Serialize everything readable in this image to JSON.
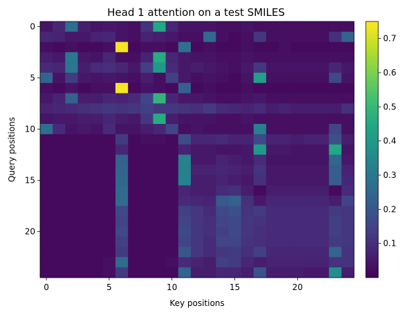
{
  "chart_data": {
    "type": "heatmap",
    "title": "Head 1 attention on a test SMILES",
    "xlabel": "Key positions",
    "ylabel": "Query positions",
    "x_ticks": [
      0,
      5,
      10,
      15,
      20
    ],
    "y_ticks": [
      0,
      5,
      10,
      15,
      20
    ],
    "colorbar_ticks": [
      0.1,
      0.2,
      0.3,
      0.4,
      0.5,
      0.6,
      0.7
    ],
    "value_range": [
      0.0,
      0.75
    ],
    "rows": 25,
    "cols": 25,
    "colormap": "viridis",
    "matrix": [
      [
        0.04,
        0.08,
        0.27,
        0.06,
        0.04,
        0.05,
        0.04,
        0.03,
        0.11,
        0.45,
        0.08,
        0.04,
        0.04,
        0.04,
        0.03,
        0.03,
        0.04,
        0.03,
        0.03,
        0.03,
        0.03,
        0.03,
        0.03,
        0.03,
        0.03
      ],
      [
        0.08,
        0.07,
        0.05,
        0.05,
        0.07,
        0.08,
        0.04,
        0.03,
        0.07,
        0.06,
        0.05,
        0.03,
        0.03,
        0.26,
        0.03,
        0.02,
        0.03,
        0.12,
        0.03,
        0.03,
        0.03,
        0.03,
        0.03,
        0.1,
        0.24
      ],
      [
        0.03,
        0.02,
        0.03,
        0.02,
        0.02,
        0.03,
        0.74,
        0.02,
        0.03,
        0.03,
        0.02,
        0.28,
        0.02,
        0.03,
        0.02,
        0.02,
        0.03,
        0.02,
        0.02,
        0.03,
        0.02,
        0.02,
        0.02,
        0.02,
        0.02
      ],
      [
        0.06,
        0.05,
        0.3,
        0.05,
        0.04,
        0.08,
        0.03,
        0.03,
        0.07,
        0.46,
        0.08,
        0.05,
        0.04,
        0.04,
        0.03,
        0.03,
        0.04,
        0.03,
        0.03,
        0.03,
        0.03,
        0.03,
        0.03,
        0.03,
        0.03
      ],
      [
        0.09,
        0.08,
        0.29,
        0.06,
        0.09,
        0.1,
        0.08,
        0.05,
        0.14,
        0.4,
        0.09,
        0.05,
        0.06,
        0.05,
        0.04,
        0.03,
        0.05,
        0.12,
        0.04,
        0.04,
        0.04,
        0.04,
        0.04,
        0.08,
        0.05
      ],
      [
        0.24,
        0.04,
        0.13,
        0.05,
        0.04,
        0.05,
        0.04,
        0.03,
        0.06,
        0.03,
        0.14,
        0.05,
        0.03,
        0.04,
        0.03,
        0.02,
        0.04,
        0.42,
        0.03,
        0.03,
        0.03,
        0.03,
        0.03,
        0.16,
        0.04
      ],
      [
        0.03,
        0.02,
        0.04,
        0.02,
        0.03,
        0.03,
        0.74,
        0.02,
        0.04,
        0.03,
        0.02,
        0.23,
        0.02,
        0.03,
        0.02,
        0.02,
        0.03,
        0.02,
        0.02,
        0.02,
        0.02,
        0.02,
        0.02,
        0.02,
        0.02
      ],
      [
        0.05,
        0.07,
        0.23,
        0.06,
        0.06,
        0.08,
        0.07,
        0.09,
        0.15,
        0.49,
        0.08,
        0.05,
        0.05,
        0.04,
        0.03,
        0.03,
        0.04,
        0.05,
        0.03,
        0.03,
        0.03,
        0.03,
        0.03,
        0.03,
        0.03
      ],
      [
        0.07,
        0.08,
        0.09,
        0.1,
        0.11,
        0.12,
        0.11,
        0.12,
        0.14,
        0.12,
        0.12,
        0.11,
        0.1,
        0.13,
        0.09,
        0.08,
        0.07,
        0.09,
        0.06,
        0.07,
        0.06,
        0.06,
        0.06,
        0.06,
        0.1
      ],
      [
        0.04,
        0.05,
        0.05,
        0.06,
        0.06,
        0.08,
        0.06,
        0.05,
        0.12,
        0.46,
        0.06,
        0.04,
        0.04,
        0.04,
        0.03,
        0.03,
        0.04,
        0.03,
        0.03,
        0.03,
        0.03,
        0.03,
        0.03,
        0.03,
        0.03
      ],
      [
        0.27,
        0.09,
        0.04,
        0.05,
        0.04,
        0.09,
        0.04,
        0.04,
        0.06,
        0.08,
        0.15,
        0.03,
        0.04,
        0.03,
        0.03,
        0.03,
        0.03,
        0.32,
        0.03,
        0.03,
        0.03,
        0.03,
        0.03,
        0.15,
        0.03
      ],
      [
        0.02,
        0.02,
        0.02,
        0.02,
        0.02,
        0.02,
        0.13,
        0.02,
        0.03,
        0.03,
        0.02,
        0.17,
        0.08,
        0.08,
        0.09,
        0.07,
        0.07,
        0.16,
        0.07,
        0.07,
        0.06,
        0.07,
        0.07,
        0.18,
        0.06
      ],
      [
        0.02,
        0.02,
        0.02,
        0.02,
        0.02,
        0.02,
        0.08,
        0.02,
        0.02,
        0.02,
        0.02,
        0.07,
        0.05,
        0.05,
        0.04,
        0.04,
        0.05,
        0.4,
        0.05,
        0.05,
        0.04,
        0.04,
        0.04,
        0.45,
        0.04
      ],
      [
        0.02,
        0.02,
        0.02,
        0.02,
        0.02,
        0.02,
        0.23,
        0.02,
        0.02,
        0.02,
        0.02,
        0.33,
        0.05,
        0.05,
        0.07,
        0.06,
        0.05,
        0.09,
        0.04,
        0.04,
        0.04,
        0.04,
        0.04,
        0.25,
        0.05
      ],
      [
        0.02,
        0.02,
        0.02,
        0.02,
        0.02,
        0.02,
        0.24,
        0.02,
        0.02,
        0.02,
        0.02,
        0.32,
        0.07,
        0.07,
        0.08,
        0.07,
        0.06,
        0.11,
        0.05,
        0.05,
        0.05,
        0.05,
        0.05,
        0.22,
        0.07
      ],
      [
        0.02,
        0.02,
        0.02,
        0.02,
        0.02,
        0.02,
        0.25,
        0.02,
        0.02,
        0.02,
        0.02,
        0.33,
        0.06,
        0.06,
        0.07,
        0.06,
        0.05,
        0.1,
        0.05,
        0.05,
        0.05,
        0.05,
        0.05,
        0.22,
        0.08
      ],
      [
        0.02,
        0.02,
        0.02,
        0.02,
        0.02,
        0.02,
        0.26,
        0.02,
        0.02,
        0.02,
        0.02,
        0.08,
        0.06,
        0.06,
        0.09,
        0.1,
        0.06,
        0.02,
        0.06,
        0.06,
        0.06,
        0.06,
        0.06,
        0.02,
        0.09
      ],
      [
        0.02,
        0.02,
        0.02,
        0.02,
        0.02,
        0.02,
        0.26,
        0.02,
        0.02,
        0.02,
        0.02,
        0.09,
        0.08,
        0.07,
        0.21,
        0.23,
        0.1,
        0.05,
        0.08,
        0.08,
        0.08,
        0.08,
        0.08,
        0.06,
        0.15
      ],
      [
        0.02,
        0.02,
        0.02,
        0.02,
        0.02,
        0.02,
        0.16,
        0.02,
        0.02,
        0.02,
        0.02,
        0.14,
        0.12,
        0.09,
        0.16,
        0.18,
        0.11,
        0.13,
        0.09,
        0.09,
        0.09,
        0.09,
        0.09,
        0.13,
        0.12
      ],
      [
        0.02,
        0.02,
        0.02,
        0.02,
        0.02,
        0.02,
        0.15,
        0.02,
        0.02,
        0.02,
        0.02,
        0.15,
        0.12,
        0.1,
        0.15,
        0.16,
        0.12,
        0.11,
        0.09,
        0.09,
        0.09,
        0.09,
        0.09,
        0.14,
        0.12
      ],
      [
        0.02,
        0.02,
        0.02,
        0.02,
        0.02,
        0.02,
        0.16,
        0.02,
        0.02,
        0.02,
        0.02,
        0.16,
        0.12,
        0.1,
        0.14,
        0.16,
        0.12,
        0.1,
        0.09,
        0.09,
        0.09,
        0.09,
        0.09,
        0.14,
        0.12
      ],
      [
        0.02,
        0.02,
        0.02,
        0.02,
        0.02,
        0.02,
        0.14,
        0.02,
        0.02,
        0.02,
        0.02,
        0.15,
        0.12,
        0.09,
        0.15,
        0.15,
        0.11,
        0.1,
        0.09,
        0.09,
        0.09,
        0.09,
        0.09,
        0.13,
        0.12
      ],
      [
        0.02,
        0.02,
        0.02,
        0.02,
        0.02,
        0.02,
        0.13,
        0.02,
        0.02,
        0.02,
        0.02,
        0.2,
        0.12,
        0.09,
        0.12,
        0.13,
        0.1,
        0.14,
        0.08,
        0.08,
        0.08,
        0.08,
        0.08,
        0.24,
        0.11
      ],
      [
        0.02,
        0.02,
        0.02,
        0.02,
        0.02,
        0.03,
        0.26,
        0.02,
        0.02,
        0.02,
        0.03,
        0.09,
        0.07,
        0.06,
        0.14,
        0.13,
        0.08,
        0.06,
        0.07,
        0.07,
        0.07,
        0.07,
        0.07,
        0.11,
        0.11
      ],
      [
        0.02,
        0.02,
        0.02,
        0.02,
        0.02,
        0.03,
        0.13,
        0.02,
        0.02,
        0.02,
        0.02,
        0.24,
        0.06,
        0.06,
        0.08,
        0.08,
        0.06,
        0.19,
        0.06,
        0.06,
        0.06,
        0.05,
        0.05,
        0.37,
        0.06
      ]
    ]
  }
}
